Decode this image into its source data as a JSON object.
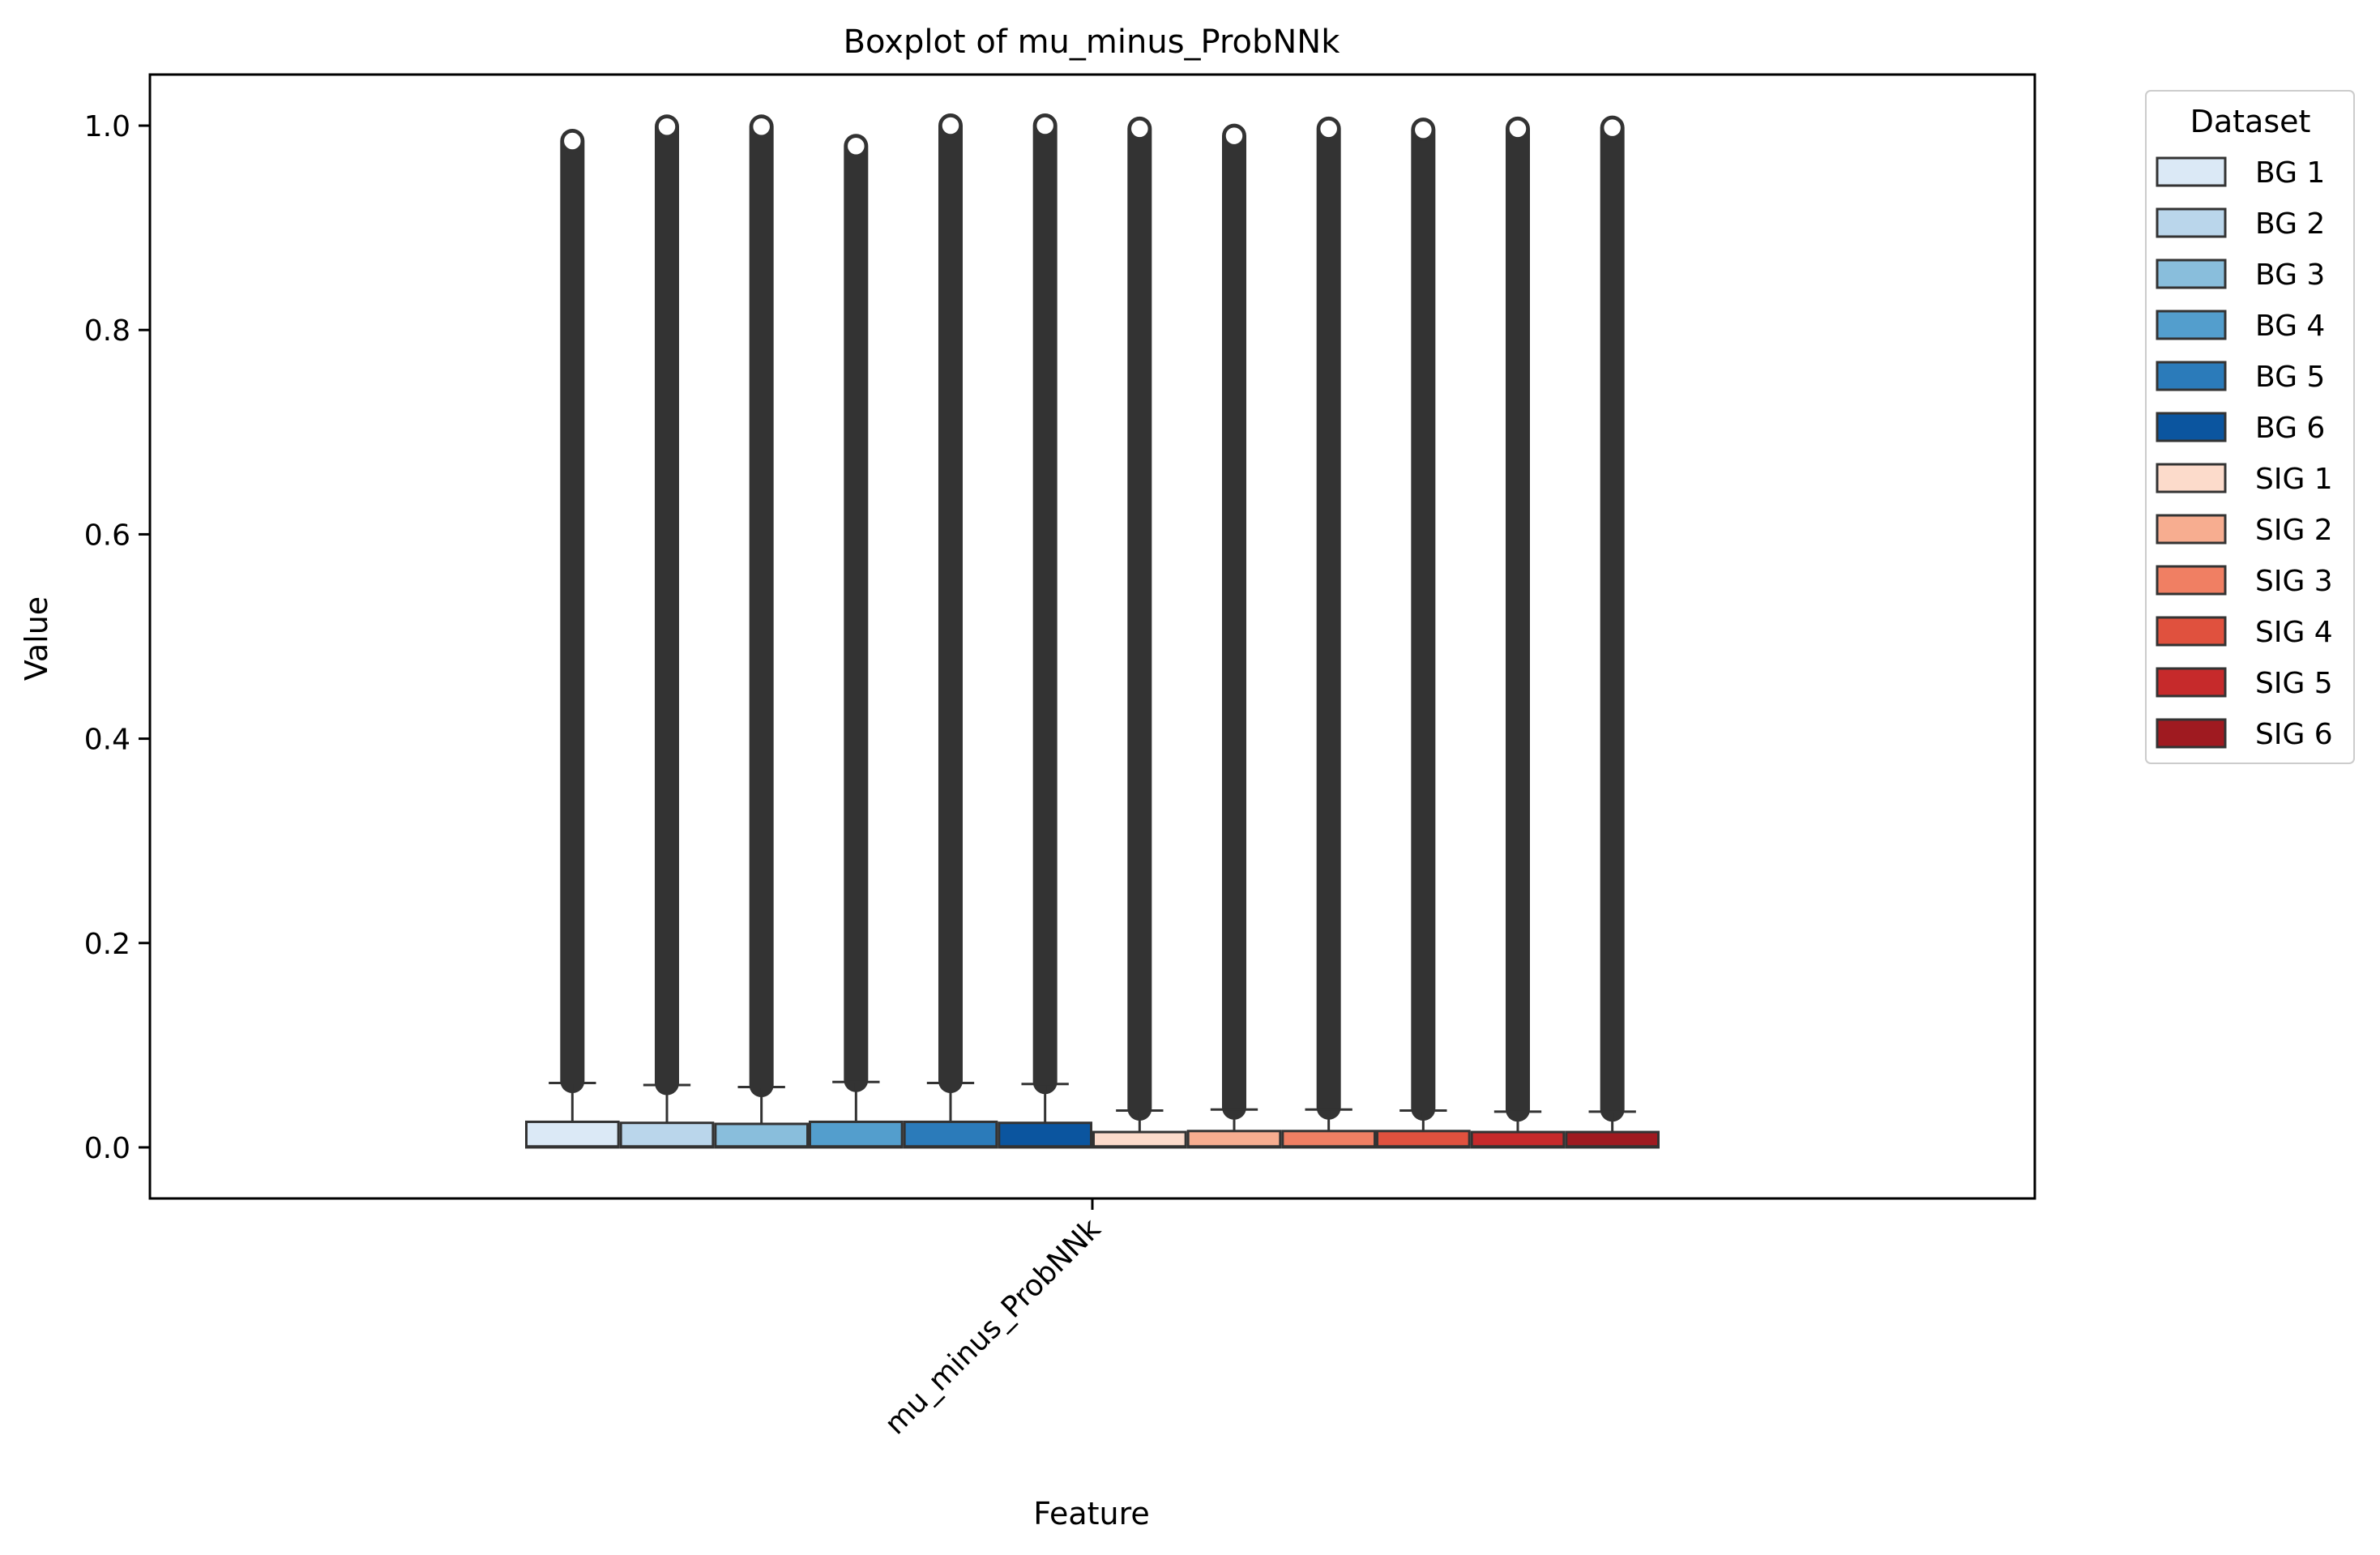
{
  "chart_data": {
    "type": "boxplot",
    "title": "Boxplot of mu_minus_ProbNNk",
    "xlabel": "Feature",
    "ylabel": "Value",
    "categories": [
      "mu_minus_ProbNNk"
    ],
    "ylim": [
      -0.05,
      1.05
    ],
    "yticks": [
      "0.0",
      "0.2",
      "0.4",
      "0.6",
      "0.8",
      "1.0"
    ],
    "grid": false,
    "legend": {
      "title": "Dataset",
      "placement": "outside-top-right"
    },
    "series": [
      {
        "name": "BG 1",
        "color": "#dbe9f6",
        "q1": 0.0,
        "median": 0.001,
        "q3": 0.025,
        "whisker_low": 0.0,
        "whisker_high": 0.063,
        "outlier_low": 0.065,
        "outlier_high": 0.985
      },
      {
        "name": "BG 2",
        "color": "#bad6eb",
        "q1": 0.0,
        "median": 0.001,
        "q3": 0.024,
        "whisker_low": 0.0,
        "whisker_high": 0.061,
        "outlier_low": 0.063,
        "outlier_high": 0.999
      },
      {
        "name": "BG 3",
        "color": "#89bedc",
        "q1": 0.0,
        "median": 0.001,
        "q3": 0.023,
        "whisker_low": 0.0,
        "whisker_high": 0.059,
        "outlier_low": 0.061,
        "outlier_high": 0.999
      },
      {
        "name": "BG 4",
        "color": "#539ecd",
        "q1": 0.0,
        "median": 0.001,
        "q3": 0.025,
        "whisker_low": 0.0,
        "whisker_high": 0.064,
        "outlier_low": 0.066,
        "outlier_high": 0.98
      },
      {
        "name": "BG 5",
        "color": "#2b7bba",
        "q1": 0.0,
        "median": 0.001,
        "q3": 0.025,
        "whisker_low": 0.0,
        "whisker_high": 0.063,
        "outlier_low": 0.065,
        "outlier_high": 1.0
      },
      {
        "name": "BG 6",
        "color": "#0b559f",
        "q1": 0.0,
        "median": 0.001,
        "q3": 0.024,
        "whisker_low": 0.0,
        "whisker_high": 0.062,
        "outlier_low": 0.064,
        "outlier_high": 1.0
      },
      {
        "name": "SIG 1",
        "color": "#fcdbcb",
        "q1": 0.0,
        "median": 0.001,
        "q3": 0.015,
        "whisker_low": 0.0,
        "whisker_high": 0.036,
        "outlier_low": 0.038,
        "outlier_high": 0.997
      },
      {
        "name": "SIG 2",
        "color": "#f7ad90",
        "q1": 0.0,
        "median": 0.001,
        "q3": 0.016,
        "whisker_low": 0.0,
        "whisker_high": 0.037,
        "outlier_low": 0.039,
        "outlier_high": 0.99
      },
      {
        "name": "SIG 3",
        "color": "#f07f63",
        "q1": 0.0,
        "median": 0.001,
        "q3": 0.016,
        "whisker_low": 0.0,
        "whisker_high": 0.037,
        "outlier_low": 0.039,
        "outlier_high": 0.997
      },
      {
        "name": "SIG 4",
        "color": "#e0513e",
        "q1": 0.0,
        "median": 0.001,
        "q3": 0.016,
        "whisker_low": 0.0,
        "whisker_high": 0.036,
        "outlier_low": 0.038,
        "outlier_high": 0.996
      },
      {
        "name": "SIG 5",
        "color": "#c62a2b",
        "q1": 0.0,
        "median": 0.001,
        "q3": 0.015,
        "whisker_low": 0.0,
        "whisker_high": 0.035,
        "outlier_low": 0.037,
        "outlier_high": 0.997
      },
      {
        "name": "SIG 6",
        "color": "#9f1a20",
        "q1": 0.0,
        "median": 0.001,
        "q3": 0.015,
        "whisker_low": 0.0,
        "whisker_high": 0.035,
        "outlier_low": 0.037,
        "outlier_high": 0.998
      }
    ]
  }
}
